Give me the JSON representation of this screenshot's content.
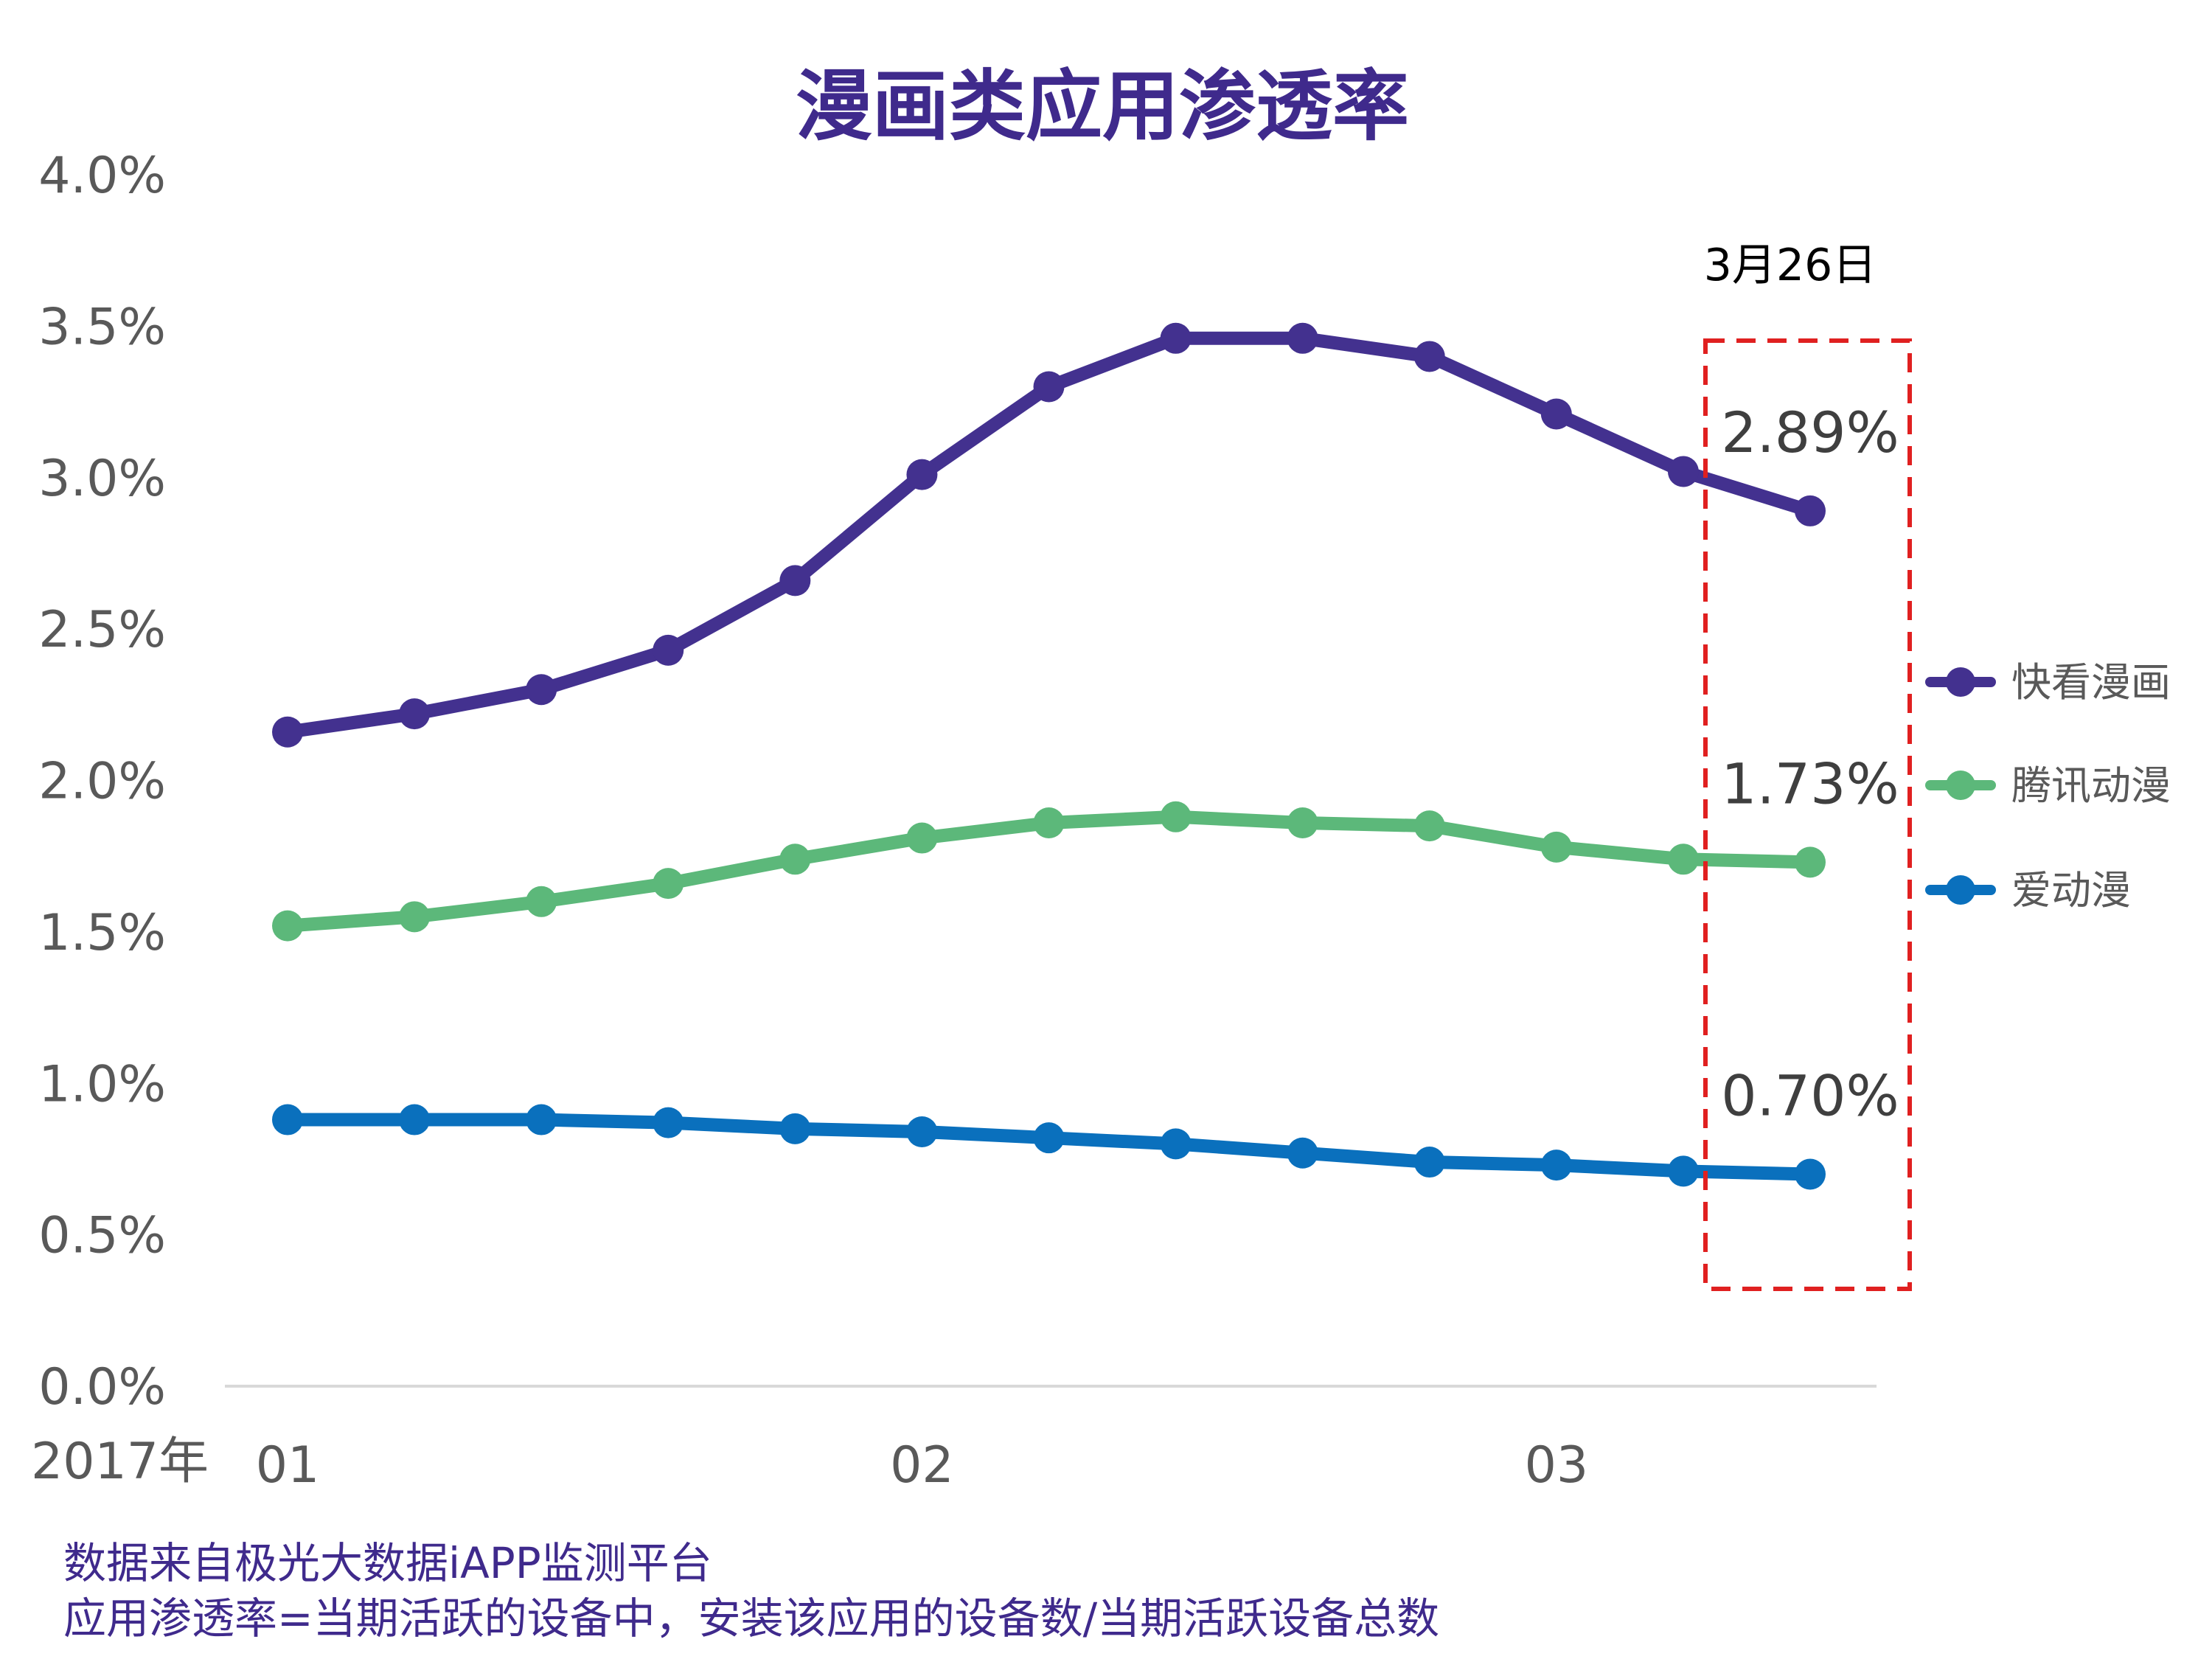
{
  "chart_data": {
    "type": "line",
    "title": "漫画类应用渗透率",
    "year_label": "2017年",
    "x": [
      1,
      2,
      3,
      4,
      5,
      6,
      7,
      8,
      9,
      10,
      11,
      12,
      13
    ],
    "x_tick_labels": [
      {
        "x": 1,
        "label": "01"
      },
      {
        "x": 6,
        "label": "02"
      },
      {
        "x": 11,
        "label": "03"
      }
    ],
    "ylim": [
      0,
      4.0
    ],
    "y_ticks": [
      {
        "value": 0.0,
        "label": "0.0%"
      },
      {
        "value": 0.5,
        "label": "0.5%"
      },
      {
        "value": 1.0,
        "label": "1.0%"
      },
      {
        "value": 1.5,
        "label": "1.5%"
      },
      {
        "value": 2.0,
        "label": "2.0%"
      },
      {
        "value": 2.5,
        "label": "2.5%"
      },
      {
        "value": 3.0,
        "label": "3.0%"
      },
      {
        "value": 3.5,
        "label": "3.5%"
      },
      {
        "value": 4.0,
        "label": "4.0%"
      }
    ],
    "series": [
      {
        "name": "快看漫画",
        "color": "#43318f",
        "values": [
          2.16,
          2.22,
          2.3,
          2.43,
          2.66,
          3.01,
          3.3,
          3.46,
          3.46,
          3.4,
          3.21,
          3.02,
          2.89
        ],
        "end_label": "2.89%"
      },
      {
        "name": "腾讯动漫",
        "color": "#5cb87a",
        "values": [
          1.52,
          1.55,
          1.6,
          1.66,
          1.74,
          1.81,
          1.86,
          1.88,
          1.86,
          1.85,
          1.78,
          1.74,
          1.73
        ],
        "end_label": "1.73%"
      },
      {
        "name": "爱动漫",
        "color": "#0a70bd",
        "values": [
          0.88,
          0.88,
          0.88,
          0.87,
          0.85,
          0.84,
          0.82,
          0.8,
          0.77,
          0.74,
          0.73,
          0.71,
          0.7
        ],
        "end_label": "0.70%"
      }
    ],
    "annotation": {
      "label": "3月26日",
      "box_color": "#e02020"
    },
    "legend_position": "right"
  },
  "footnotes": [
    "数据来自极光大数据iAPP监测平台",
    "应用渗透率=当期活跃的设备中，安装该应用的设备数/当期活跃设备总数"
  ]
}
